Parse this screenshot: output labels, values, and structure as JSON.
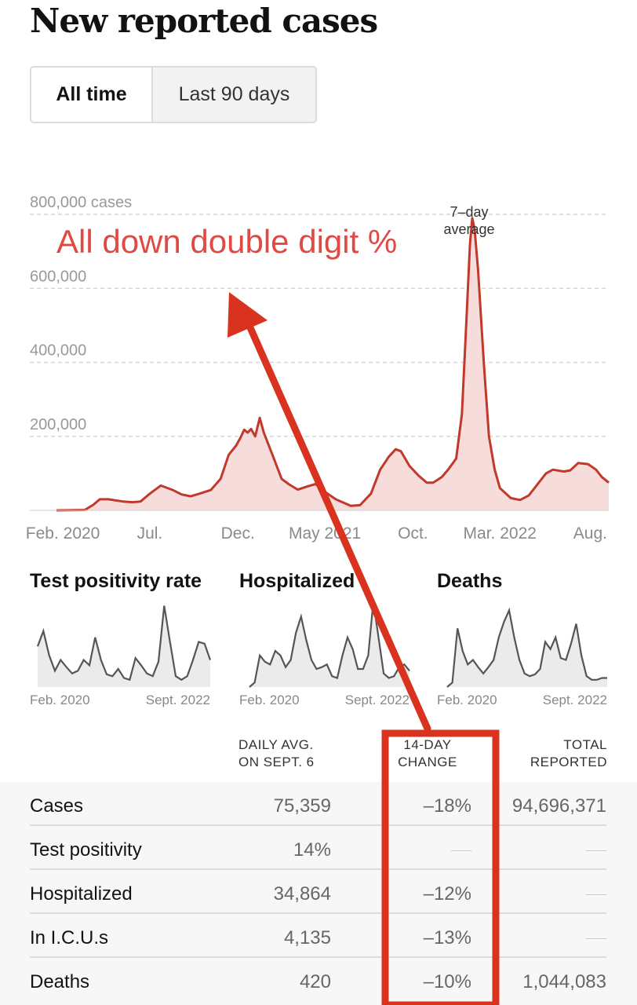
{
  "title": "New reported cases",
  "toggle": {
    "all_time": "All time",
    "last_90": "Last 90 days"
  },
  "callout": "All down double digit %",
  "annotation_line1": "7–day",
  "annotation_line2": "average",
  "colors": {
    "accent_red": "#c0392b",
    "fill_pink": "#f7dcdc",
    "callout_red": "#e04a45",
    "highlight_box": "#d9321f",
    "spark_line": "#555555",
    "spark_fill": "#ebebeb"
  },
  "chart_data": [
    {
      "type": "area",
      "ylim": [
        0,
        800000
      ],
      "yticks": [
        {
          "value": 200000,
          "label": "200,000"
        },
        {
          "value": 400000,
          "label": "400,000"
        },
        {
          "value": 600000,
          "label": "600,000"
        },
        {
          "value": 800000,
          "label": "800,000 cases"
        }
      ],
      "xlim": [
        "2020-01-21",
        "2022-09-06"
      ],
      "xticks": [
        {
          "date": "2020-02-01",
          "label": "Feb. 2020"
        },
        {
          "date": "2020-07-01",
          "label": "Jul."
        },
        {
          "date": "2020-12-01",
          "label": "Dec."
        },
        {
          "date": "2021-05-01",
          "label": "May 2021"
        },
        {
          "date": "2021-10-01",
          "label": "Oct."
        },
        {
          "date": "2022-03-01",
          "label": "Mar. 2022"
        },
        {
          "date": "2022-08-01",
          "label": "Aug."
        }
      ],
      "grid": true,
      "series": [
        {
          "points": [
            [
              "2020-01-21",
              0
            ],
            [
              "2020-03-10",
              1000
            ],
            [
              "2020-03-25",
              15000
            ],
            [
              "2020-04-05",
              30000
            ],
            [
              "2020-04-20",
              30000
            ],
            [
              "2020-05-15",
              24000
            ],
            [
              "2020-06-01",
              22000
            ],
            [
              "2020-06-15",
              24000
            ],
            [
              "2020-07-01",
              45000
            ],
            [
              "2020-07-20",
              67000
            ],
            [
              "2020-08-10",
              55000
            ],
            [
              "2020-08-25",
              43000
            ],
            [
              "2020-09-10",
              38000
            ],
            [
              "2020-09-25",
              45000
            ],
            [
              "2020-10-15",
              55000
            ],
            [
              "2020-11-01",
              85000
            ],
            [
              "2020-11-15",
              150000
            ],
            [
              "2020-11-28",
              175000
            ],
            [
              "2020-12-05",
              195000
            ],
            [
              "2020-12-12",
              218000
            ],
            [
              "2020-12-18",
              210000
            ],
            [
              "2020-12-24",
              220000
            ],
            [
              "2020-12-31",
              200000
            ],
            [
              "2021-01-08",
              250000
            ],
            [
              "2021-01-15",
              210000
            ],
            [
              "2021-01-30",
              150000
            ],
            [
              "2021-02-15",
              85000
            ],
            [
              "2021-02-28",
              70000
            ],
            [
              "2021-03-15",
              56000
            ],
            [
              "2021-04-01",
              65000
            ],
            [
              "2021-04-15",
              71000
            ],
            [
              "2021-05-01",
              50000
            ],
            [
              "2021-05-20",
              30000
            ],
            [
              "2021-06-15",
              12000
            ],
            [
              "2021-07-01",
              14000
            ],
            [
              "2021-07-20",
              45000
            ],
            [
              "2021-08-05",
              110000
            ],
            [
              "2021-08-20",
              145000
            ],
            [
              "2021-09-01",
              165000
            ],
            [
              "2021-09-10",
              160000
            ],
            [
              "2021-09-25",
              120000
            ],
            [
              "2021-10-10",
              95000
            ],
            [
              "2021-10-25",
              75000
            ],
            [
              "2021-11-05",
              75000
            ],
            [
              "2021-11-20",
              90000
            ],
            [
              "2021-12-01",
              110000
            ],
            [
              "2021-12-15",
              140000
            ],
            [
              "2021-12-25",
              260000
            ],
            [
              "2022-01-02",
              520000
            ],
            [
              "2022-01-08",
              720000
            ],
            [
              "2022-01-12",
              790000
            ],
            [
              "2022-01-16",
              760000
            ],
            [
              "2022-01-22",
              650000
            ],
            [
              "2022-02-01",
              400000
            ],
            [
              "2022-02-10",
              200000
            ],
            [
              "2022-02-20",
              110000
            ],
            [
              "2022-03-01",
              60000
            ],
            [
              "2022-03-20",
              33000
            ],
            [
              "2022-04-05",
              28000
            ],
            [
              "2022-04-20",
              40000
            ],
            [
              "2022-05-05",
              70000
            ],
            [
              "2022-05-20",
              100000
            ],
            [
              "2022-06-01",
              110000
            ],
            [
              "2022-06-20",
              105000
            ],
            [
              "2022-07-01",
              108000
            ],
            [
              "2022-07-15",
              128000
            ],
            [
              "2022-08-01",
              125000
            ],
            [
              "2022-08-15",
              110000
            ],
            [
              "2022-08-25",
              90000
            ],
            [
              "2022-09-06",
              75000
            ]
          ]
        }
      ]
    },
    {
      "type": "area",
      "title": "Test positivity rate",
      "xticks": [
        "Feb. 2020",
        "Sept. 2022"
      ],
      "values": [
        0.45,
        0.62,
        0.35,
        0.18,
        0.3,
        0.22,
        0.15,
        0.18,
        0.3,
        0.24,
        0.55,
        0.3,
        0.14,
        0.12,
        0.2,
        0.1,
        0.08,
        0.32,
        0.24,
        0.15,
        0.12,
        0.28,
        0.9,
        0.5,
        0.12,
        0.08,
        0.12,
        0.3,
        0.5,
        0.48,
        0.3
      ]
    },
    {
      "type": "area",
      "title": "Hospitalized",
      "xticks": [
        "Feb. 2020",
        "Sept. 2022"
      ],
      "values": [
        0.0,
        0.05,
        0.35,
        0.28,
        0.25,
        0.4,
        0.35,
        0.22,
        0.3,
        0.6,
        0.78,
        0.52,
        0.3,
        0.2,
        0.22,
        0.25,
        0.12,
        0.1,
        0.35,
        0.55,
        0.42,
        0.2,
        0.2,
        0.35,
        0.95,
        0.55,
        0.15,
        0.1,
        0.12,
        0.22,
        0.25,
        0.18
      ]
    },
    {
      "type": "area",
      "title": "Deaths",
      "xticks": [
        "Feb. 2020",
        "Sept. 2022"
      ],
      "values": [
        0.0,
        0.05,
        0.65,
        0.4,
        0.25,
        0.3,
        0.22,
        0.15,
        0.22,
        0.3,
        0.55,
        0.72,
        0.85,
        0.55,
        0.3,
        0.15,
        0.12,
        0.14,
        0.2,
        0.5,
        0.42,
        0.55,
        0.32,
        0.3,
        0.48,
        0.7,
        0.35,
        0.12,
        0.08,
        0.08,
        0.1,
        0.1
      ]
    }
  ],
  "table": {
    "headers": {
      "col1_l1": "DAILY AVG.",
      "col1_l2": "ON SEPT. 6",
      "col2_l1": "14-DAY",
      "col2_l2": "CHANGE",
      "col3_l1": "TOTAL",
      "col3_l2": "REPORTED"
    },
    "rows": [
      {
        "label": "Cases",
        "avg": "75,359",
        "change": "–18%",
        "total": "94,696,371"
      },
      {
        "label": "Test positivity",
        "avg": "14%",
        "change": "",
        "total": ""
      },
      {
        "label": "Hospitalized",
        "avg": "34,864",
        "change": "–12%",
        "total": ""
      },
      {
        "label": "In I.C.U.s",
        "avg": "4,135",
        "change": "–13%",
        "total": ""
      },
      {
        "label": "Deaths",
        "avg": "420",
        "change": "–10%",
        "total": "1,044,083"
      }
    ]
  }
}
